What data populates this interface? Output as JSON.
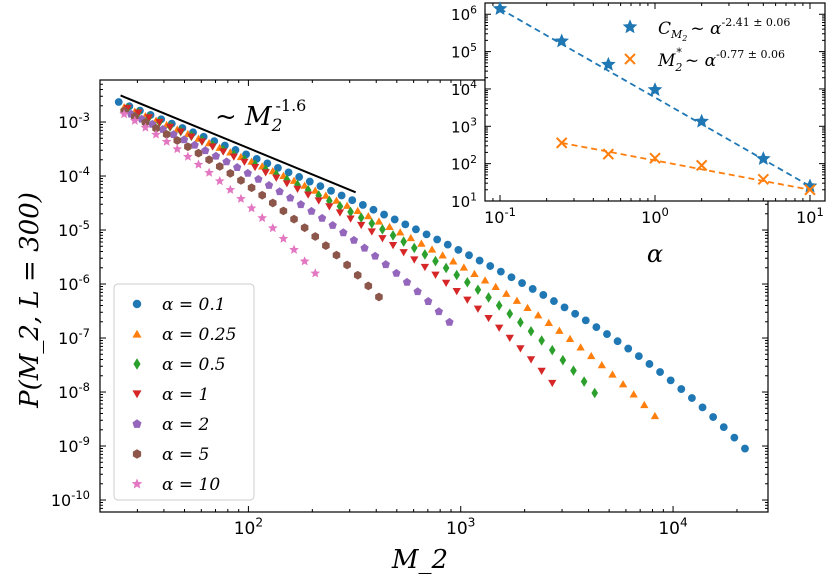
{
  "chart_data": [
    {
      "type": "scatter",
      "title": "",
      "xlabel": "M_2",
      "ylabel": "P(M_2, L = 300)",
      "xscale": "log",
      "yscale": "log",
      "xlim": [
        20,
        28000
      ],
      "ylim": [
        6e-11,
        0.006
      ],
      "x_ticks": [
        {
          "value": 100,
          "base": "10",
          "exp": "2"
        },
        {
          "value": 1000,
          "base": "10",
          "exp": "3"
        },
        {
          "value": 10000,
          "base": "10",
          "exp": "4"
        }
      ],
      "y_ticks": [
        {
          "value": 0.001,
          "base": "10",
          "exp": "-3"
        },
        {
          "value": 0.0001,
          "base": "10",
          "exp": "-4"
        },
        {
          "value": 1e-05,
          "base": "10",
          "exp": "-5"
        },
        {
          "value": 1e-06,
          "base": "10",
          "exp": "-6"
        },
        {
          "value": 1e-07,
          "base": "10",
          "exp": "-7"
        },
        {
          "value": 1e-08,
          "base": "10",
          "exp": "-8"
        },
        {
          "value": 1e-09,
          "base": "10",
          "exp": "-9"
        },
        {
          "value": 1e-10,
          "base": "10",
          "exp": "-10"
        }
      ],
      "annotation": {
        "text": "~ M",
        "sub": "2",
        "sup": "-1.6",
        "line": {
          "x": [
            25,
            320
          ],
          "y": [
            0.0031,
            5e-05
          ]
        }
      },
      "legend_position": "lower-left",
      "series": [
        {
          "name": "α = 0.1",
          "alpha_label": "α = 0.1",
          "color": "#1f77b4",
          "marker": "circle",
          "x0": 24.5,
          "ratio": 1.122,
          "n": 60,
          "y0": 0.00235,
          "slope": -1.55,
          "xc": 1900,
          "cut_exp": 0.6
        },
        {
          "name": "α = 0.25",
          "alpha_label": "α = 0.25",
          "color": "#ff7f0e",
          "marker": "triangle-up",
          "x0": 26,
          "ratio": 1.122,
          "n": 51,
          "y0": 0.0019,
          "slope": -1.55,
          "xc": 700,
          "cut_exp": 0.6
        },
        {
          "name": "α = 0.5",
          "alpha_label": "α = 0.5",
          "color": "#2ca02c",
          "marker": "diamond",
          "x0": 27,
          "ratio": 1.122,
          "n": 45,
          "y0": 0.0018,
          "slope": -1.55,
          "xc": 380,
          "cut_exp": 0.62
        },
        {
          "name": "α = 1",
          "alpha_label": "α = 1",
          "color": "#d62728",
          "marker": "triangle-down",
          "x0": 27,
          "ratio": 1.122,
          "n": 41,
          "y0": 0.0018,
          "slope": -1.55,
          "xc": 210,
          "cut_exp": 0.62
        },
        {
          "name": "α = 2",
          "alpha_label": "α = 2",
          "color": "#9467bd",
          "marker": "pentagon",
          "x0": 28,
          "ratio": 1.122,
          "n": 31,
          "y0": 0.0014,
          "slope": -1.55,
          "xc": 95,
          "cut_exp": 0.62
        },
        {
          "name": "α = 5",
          "alpha_label": "α = 5",
          "color": "#8c564b",
          "marker": "hexagon",
          "x0": 26,
          "ratio": 1.122,
          "n": 25,
          "y0": 0.0016,
          "slope": -1.55,
          "xc": 30,
          "cut_exp": 0.58
        },
        {
          "name": "α = 10",
          "alpha_label": "α = 10",
          "color": "#e377c2",
          "marker": "star",
          "x0": 26,
          "ratio": 1.122,
          "n": 19,
          "y0": 0.0014,
          "slope": -1.55,
          "xc": 14,
          "cut_exp": 0.6
        }
      ]
    },
    {
      "type": "scatter",
      "title": "",
      "xlabel": "α",
      "ylabel": "",
      "xscale": "log",
      "yscale": "log",
      "xlim": [
        0.08,
        12.5
      ],
      "ylim": [
        10,
        2000000
      ],
      "x_ticks": [
        {
          "value": 0.1,
          "base": "10",
          "exp": "-1"
        },
        {
          "value": 1,
          "base": "10",
          "exp": "0"
        },
        {
          "value": 10,
          "base": "10",
          "exp": "1"
        }
      ],
      "y_ticks": [
        {
          "value": 10,
          "base": "10",
          "exp": "1"
        },
        {
          "value": 100,
          "base": "10",
          "exp": "2"
        },
        {
          "value": 1000,
          "base": "10",
          "exp": "3"
        },
        {
          "value": 10000,
          "base": "10",
          "exp": "4"
        },
        {
          "value": 100000,
          "base": "10",
          "exp": "5"
        },
        {
          "value": 1000000,
          "base": "10",
          "exp": "6"
        }
      ],
      "series": [
        {
          "name": "C_M2 ~ α^-2.41±0.06",
          "main": "C",
          "sub": "M",
          "subsub": "2",
          "rel": "~ α",
          "sup": "-2.41 ± 0.06",
          "color": "#1f77b4",
          "marker": "star",
          "x": [
            0.1,
            0.25,
            0.5,
            1,
            2,
            5,
            10
          ],
          "y": [
            1400000,
            190000,
            45000,
            9500,
            1350,
            135,
            25
          ],
          "fit": {
            "x": [
              0.1,
              10
            ],
            "y": [
              1400000,
              25
            ]
          }
        },
        {
          "name": "M2* ~ α^-0.77±0.06",
          "main": "M",
          "sub": "2",
          "star": "*",
          "rel": "~ α",
          "sup": "-0.77 ± 0.06",
          "color": "#ff7f0e",
          "marker": "x",
          "x": [
            0.25,
            0.5,
            1,
            2,
            5,
            10
          ],
          "y": [
            360,
            180,
            140,
            90,
            38,
            20
          ],
          "fit": {
            "x": [
              0.25,
              10
            ],
            "y": [
              360,
              20
            ]
          }
        }
      ]
    }
  ]
}
